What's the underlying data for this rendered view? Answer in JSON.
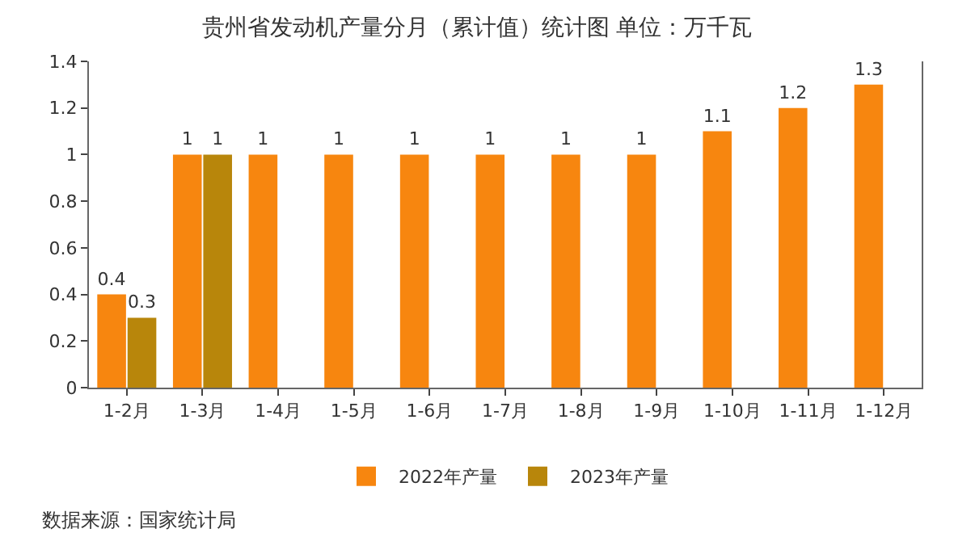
{
  "chart_data": {
    "type": "bar",
    "title": "贵州省发动机产量分月（累计值）统计图 单位：万千瓦",
    "categories": [
      "1-2月",
      "1-3月",
      "1-4月",
      "1-5月",
      "1-6月",
      "1-7月",
      "1-8月",
      "1-9月",
      "1-10月",
      "1-11月",
      "1-12月"
    ],
    "series": [
      {
        "name": "2022年产量",
        "color": "#f7860f",
        "values": [
          0.4,
          1,
          1,
          1,
          1,
          1,
          1,
          1,
          1.1,
          1.2,
          1.3
        ]
      },
      {
        "name": "2023年产量",
        "color": "#b8860b",
        "values": [
          0.3,
          1,
          null,
          null,
          null,
          null,
          null,
          null,
          null,
          null,
          null
        ]
      }
    ],
    "ylim": [
      0,
      1.4
    ],
    "yticks": [
      0,
      0.2,
      0.4,
      0.6,
      0.8,
      1,
      1.2,
      1.4
    ],
    "data_labels": true,
    "grid": false,
    "legend": "bottom",
    "annotations": [
      "数据来源：国家统计局"
    ]
  }
}
